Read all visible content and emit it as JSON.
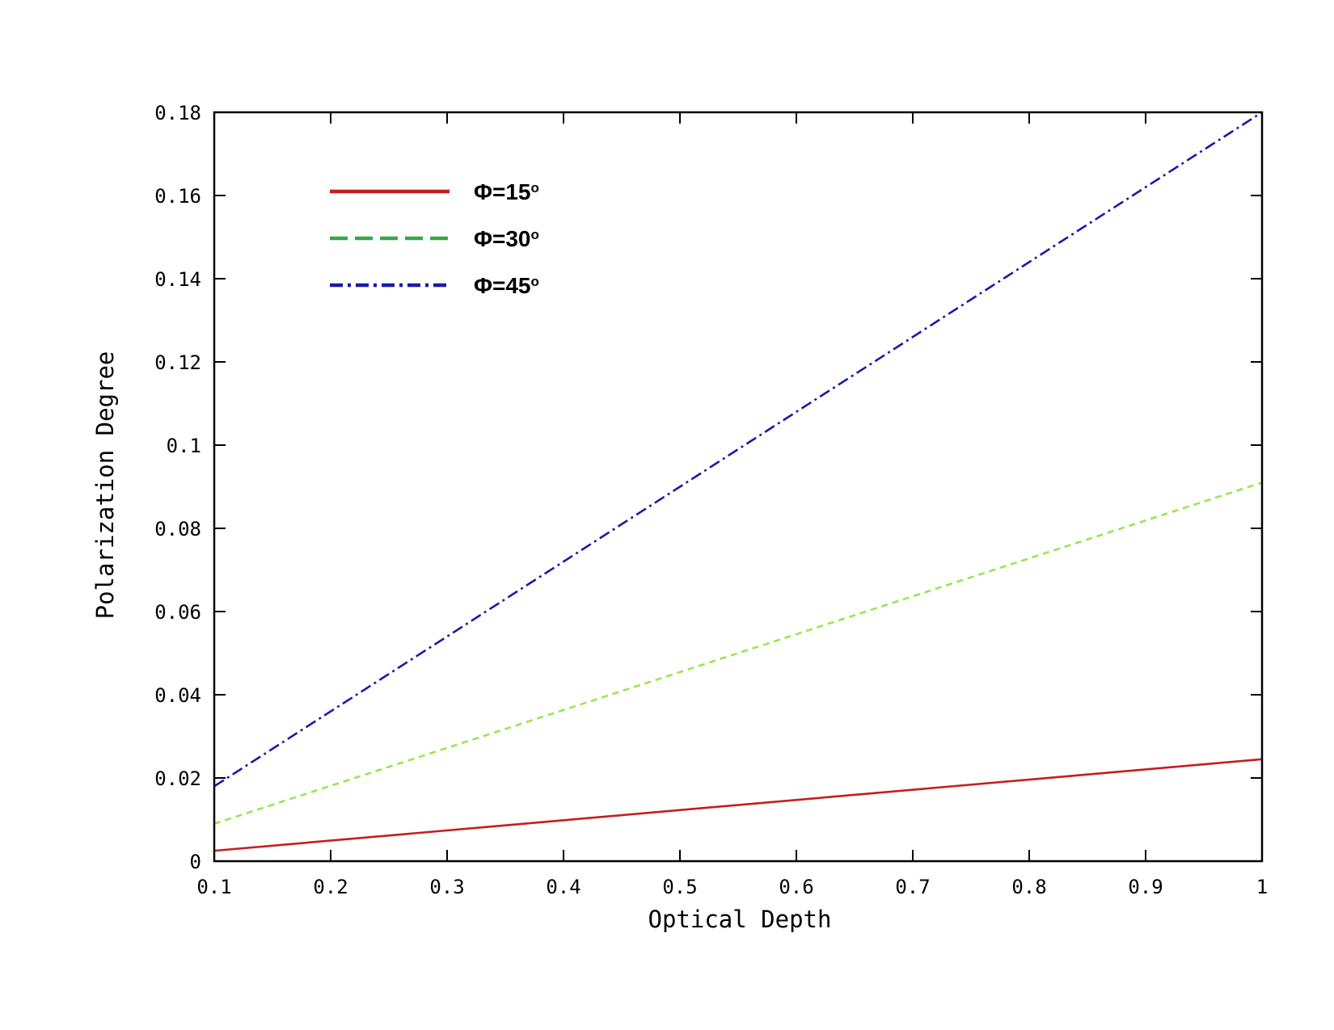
{
  "chart_data": {
    "type": "line",
    "xlabel": "Optical Depth",
    "ylabel": "Polarization Degree",
    "xlim": [
      0.1,
      1
    ],
    "ylim": [
      0,
      0.18
    ],
    "x_ticks": [
      "0.1",
      "0.2",
      "0.3",
      "0.4",
      "0.5",
      "0.6",
      "0.7",
      "0.8",
      "0.9",
      "1"
    ],
    "y_ticks": [
      "0",
      "0.02",
      "0.04",
      "0.06",
      "0.08",
      "0.1",
      "0.12",
      "0.14",
      "0.16",
      "0.18"
    ],
    "legend_position": "top-left",
    "grid": false,
    "series": [
      {
        "name": "Φ=15",
        "name_sup": "o",
        "color": "#c41e1e",
        "style": "solid",
        "x": [
          0.1,
          1
        ],
        "y": [
          0.0025,
          0.0245
        ]
      },
      {
        "name": "Φ=30",
        "name_sup": "o",
        "color": "#99e64d",
        "legend_color": "#3aa64a",
        "style": "dashed",
        "x": [
          0.1,
          1
        ],
        "y": [
          0.009,
          0.091
        ]
      },
      {
        "name": "Φ=45",
        "name_sup": "o",
        "color": "#1a1aa8",
        "style": "dashdot",
        "x": [
          0.1,
          1
        ],
        "y": [
          0.018,
          0.18
        ]
      }
    ]
  }
}
